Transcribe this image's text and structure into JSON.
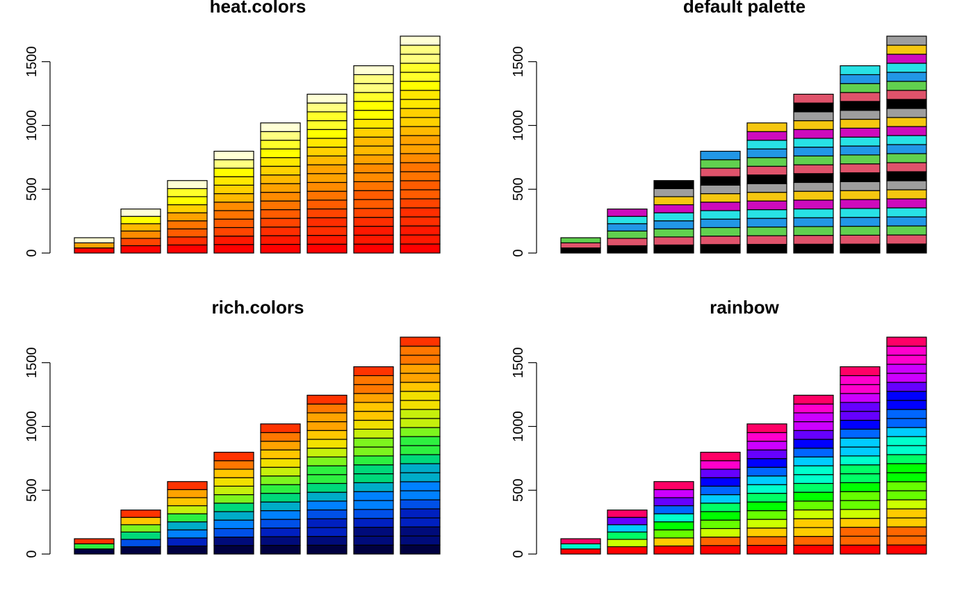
{
  "chart_data": [
    {
      "type": "bar",
      "stacked": true,
      "title": "heat.colors",
      "xlabel": "",
      "ylabel": "",
      "ylim": [
        0,
        1700
      ],
      "yticks": [
        0,
        500,
        1000,
        1500
      ],
      "bar_totals": [
        120,
        345,
        568,
        798,
        1020,
        1245,
        1468,
        1700
      ],
      "segments_per_bar": [
        3,
        6,
        9,
        12,
        15,
        18,
        21,
        24
      ],
      "segment_sequence": [
        "#FF0000",
        "#FF1800",
        "#FF2E00",
        "#FF4500",
        "#FF5C00",
        "#FF7400",
        "#FF8B00",
        "#FFA200",
        "#FFB900",
        "#FFD100",
        "#FFE800",
        "#FFFF00",
        "#FFFF2A",
        "#FFFF80",
        "#FFFFD5"
      ],
      "color_mode": "stretch"
    },
    {
      "type": "bar",
      "stacked": true,
      "title": "default palette",
      "xlabel": "",
      "ylabel": "",
      "ylim": [
        0,
        1700
      ],
      "yticks": [
        0,
        500,
        1000,
        1500
      ],
      "bar_totals": [
        120,
        345,
        568,
        798,
        1020,
        1245,
        1468,
        1700
      ],
      "segments_per_bar": [
        3,
        6,
        9,
        12,
        15,
        18,
        21,
        24
      ],
      "segment_sequence": [
        "#000000",
        "#DF536B",
        "#61D04F",
        "#2297E6",
        "#28E2E5",
        "#CD0BBC",
        "#F5C710",
        "#9E9E9E"
      ],
      "color_mode": "cycle"
    },
    {
      "type": "bar",
      "stacked": true,
      "title": "rich.colors",
      "xlabel": "",
      "ylabel": "",
      "ylim": [
        0,
        1700
      ],
      "yticks": [
        0,
        500,
        1000,
        1500
      ],
      "bar_totals": [
        120,
        345,
        568,
        798,
        1020,
        1245,
        1468,
        1700
      ],
      "segments_per_bar": [
        3,
        6,
        9,
        12,
        15,
        18,
        21,
        24
      ],
      "segment_sequence": [
        "#000040",
        "#000B7A",
        "#0020C0",
        "#0050E8",
        "#0081FF",
        "#00ACC8",
        "#00D97A",
        "#2EF040",
        "#7DF51E",
        "#C6F00C",
        "#F2E000",
        "#FFC600",
        "#FFA300",
        "#FF7700",
        "#FF3300"
      ],
      "color_mode": "stretch"
    },
    {
      "type": "bar",
      "stacked": true,
      "title": "rainbow",
      "xlabel": "",
      "ylabel": "",
      "ylim": [
        0,
        1700
      ],
      "yticks": [
        0,
        500,
        1000,
        1500
      ],
      "bar_totals": [
        120,
        345,
        568,
        798,
        1020,
        1245,
        1468,
        1700
      ],
      "segments_per_bar": [
        3,
        6,
        9,
        12,
        15,
        18,
        21,
        24
      ],
      "segment_sequence": [
        "#FF0000",
        "#FF6600",
        "#FFCC00",
        "#CCFF00",
        "#66FF00",
        "#00FF00",
        "#00FF66",
        "#00FFCC",
        "#00CCFF",
        "#0066FF",
        "#0000FF",
        "#6600FF",
        "#CC00FF",
        "#FF00CC",
        "#FF0066"
      ],
      "color_mode": "stretch"
    }
  ]
}
